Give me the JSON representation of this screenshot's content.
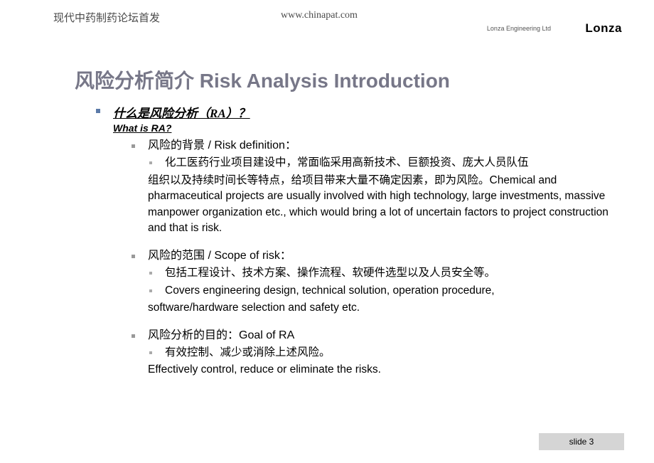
{
  "header": {
    "left": "现代中药制药论坛首发",
    "center": "www.chinapat.com",
    "engineering": "Lonza Engineering Ltd",
    "logo": "Lonza"
  },
  "title": "风险分析简介 Risk Analysis Introduction",
  "section": {
    "heading_cn": "什么是风险分析（RA）？",
    "heading_en": "What is RA?",
    "items": [
      {
        "l2": "风险的背景 / Risk definition：",
        "l3a": "化工医药行业项目建设中，常面临采用高新技术、巨额投资、庞大人员队伍",
        "l3a_cont": "组织以及持续时间长等特点，给项目带来大量不确定因素，即为风险。Chemical and pharmaceutical projects are usually involved with high technology, large investments, massive manpower organization etc., which would bring a lot of uncertain factors to project construction and that is risk."
      },
      {
        "l2": "风险的范围 / Scope of risk：",
        "l3a": "包括工程设计、技术方案、操作流程、软硬件选型以及人员安全等。",
        "l3b": "Covers engineering design, technical solution, operation procedure,",
        "l3b_cont": "software/hardware selection and safety etc."
      },
      {
        "l2": "风险分析的目的：Goal of RA",
        "l3a": "有效控制、减少或消除上述风险。",
        "l3_plain": "Effectively control, reduce or eliminate the risks."
      }
    ]
  },
  "footer": {
    "slide": "slide 3"
  },
  "colors": {
    "title": "#777788",
    "bullet1": "#5b7aa8",
    "bullet2": "#999999",
    "bullet3": "#aaaaaa",
    "footer_bg": "#d5d5d5"
  }
}
